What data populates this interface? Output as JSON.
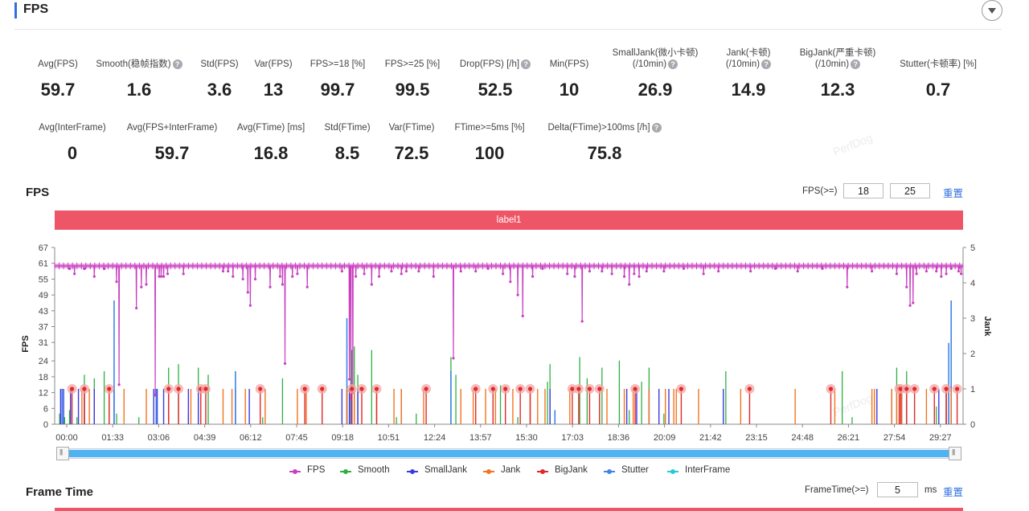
{
  "header": {
    "title": "FPS"
  },
  "metrics_row1": [
    {
      "label": "Avg(FPS)",
      "value": "59.7",
      "help": false
    },
    {
      "label": "Smooth(稳帧指数)",
      "value": "1.6",
      "help": true
    },
    {
      "label": "Std(FPS)",
      "value": "3.6",
      "help": false
    },
    {
      "label": "Var(FPS)",
      "value": "13",
      "help": false
    },
    {
      "label": "FPS>=18 [%]",
      "value": "99.7",
      "help": false
    },
    {
      "label": "FPS>=25 [%]",
      "value": "99.5",
      "help": false
    },
    {
      "label": "Drop(FPS) [/h]",
      "value": "52.5",
      "help": true
    },
    {
      "label": "Min(FPS)",
      "value": "10",
      "help": false
    },
    {
      "label": "SmallJank(微小卡顿)",
      "label2": "(/10min)",
      "value": "26.9",
      "help": true
    },
    {
      "label": "Jank(卡顿)",
      "label2": "(/10min)",
      "value": "14.9",
      "help": true
    },
    {
      "label": "BigJank(严重卡顿)",
      "label2": "(/10min)",
      "value": "12.3",
      "help": true
    },
    {
      "label": "Stutter(卡顿率) [%]",
      "value": "0.7",
      "help": false
    }
  ],
  "metrics_row2": [
    {
      "label": "Avg(InterFrame)",
      "value": "0",
      "help": false
    },
    {
      "label": "Avg(FPS+InterFrame)",
      "value": "59.7",
      "help": false
    },
    {
      "label": "Avg(FTime) [ms]",
      "value": "16.8",
      "help": false
    },
    {
      "label": "Std(FTime)",
      "value": "8.5",
      "help": false
    },
    {
      "label": "Var(FTime)",
      "value": "72.5",
      "help": false
    },
    {
      "label": "FTime>=5ms [%]",
      "value": "100",
      "help": false
    },
    {
      "label": "Delta(FTime)>100ms [/h]",
      "value": "75.8",
      "help": true
    }
  ],
  "help_icon": "?",
  "fps_section": {
    "title": "FPS",
    "threshold_label": "FPS(>=)",
    "threshold1": "18",
    "threshold2": "25",
    "reset_label": "重置",
    "label_bar": "label1"
  },
  "watermark": "PerfDog",
  "chart_data": {
    "type": "line",
    "xlabel": "",
    "ylabel": "FPS",
    "y2label": "Jank",
    "ylim": [
      0,
      67
    ],
    "y2lim": [
      0,
      5
    ],
    "y_ticks": [
      0,
      6,
      12,
      18,
      24,
      31,
      37,
      43,
      49,
      55,
      61,
      67
    ],
    "y2_ticks": [
      0,
      1,
      2,
      3,
      4,
      5
    ],
    "x_ticks": [
      "00:00",
      "01:33",
      "03:06",
      "04:39",
      "06:12",
      "07:45",
      "09:18",
      "10:51",
      "12:24",
      "13:57",
      "15:30",
      "17:03",
      "18:36",
      "20:09",
      "21:42",
      "23:15",
      "24:48",
      "26:21",
      "27:54",
      "29:27"
    ],
    "duration_s": 1834,
    "fps_baseline": 60,
    "fps_drops": [
      [
        40,
        57
      ],
      [
        80,
        56
      ],
      [
        125,
        54
      ],
      [
        130,
        15
      ],
      [
        165,
        44
      ],
      [
        175,
        52
      ],
      [
        185,
        53
      ],
      [
        203,
        11
      ],
      [
        211,
        56
      ],
      [
        215,
        56
      ],
      [
        220,
        56
      ],
      [
        228,
        57
      ],
      [
        260,
        57
      ],
      [
        340,
        58
      ],
      [
        350,
        58
      ],
      [
        360,
        56
      ],
      [
        380,
        55
      ],
      [
        390,
        50
      ],
      [
        395,
        45
      ],
      [
        405,
        55
      ],
      [
        435,
        52
      ],
      [
        455,
        56
      ],
      [
        460,
        53
      ],
      [
        465,
        23
      ],
      [
        480,
        56
      ],
      [
        490,
        57
      ],
      [
        510,
        52
      ],
      [
        580,
        58
      ],
      [
        595,
        17
      ],
      [
        598,
        10
      ],
      [
        602,
        12
      ],
      [
        608,
        56
      ],
      [
        625,
        57
      ],
      [
        640,
        53
      ],
      [
        655,
        56
      ],
      [
        680,
        58
      ],
      [
        700,
        57
      ],
      [
        710,
        58
      ],
      [
        735,
        58
      ],
      [
        765,
        56
      ],
      [
        805,
        25
      ],
      [
        820,
        58
      ],
      [
        850,
        58
      ],
      [
        875,
        59
      ],
      [
        905,
        57
      ],
      [
        920,
        54
      ],
      [
        935,
        49
      ],
      [
        945,
        41
      ],
      [
        965,
        56
      ],
      [
        985,
        59
      ],
      [
        1035,
        57
      ],
      [
        1050,
        56
      ],
      [
        1065,
        39
      ],
      [
        1080,
        58
      ],
      [
        1105,
        58
      ],
      [
        1125,
        57
      ],
      [
        1150,
        56
      ],
      [
        1160,
        53
      ],
      [
        1170,
        57
      ],
      [
        1180,
        56
      ],
      [
        1195,
        58
      ],
      [
        1230,
        58
      ],
      [
        1270,
        59
      ],
      [
        1310,
        57
      ],
      [
        1340,
        58
      ],
      [
        1405,
        58
      ],
      [
        1455,
        59
      ],
      [
        1500,
        58
      ],
      [
        1550,
        59
      ],
      [
        1600,
        52
      ],
      [
        1650,
        58
      ],
      [
        1700,
        57
      ],
      [
        1720,
        52
      ],
      [
        1727,
        45
      ],
      [
        1733,
        46
      ],
      [
        1740,
        57
      ],
      [
        1760,
        58
      ],
      [
        1780,
        58
      ],
      [
        1790,
        56
      ],
      [
        1800,
        57
      ],
      [
        1810,
        59
      ],
      [
        1825,
        58
      ],
      [
        1830,
        57
      ]
    ],
    "smallJank": [
      [
        12,
        1
      ],
      [
        18,
        1
      ],
      [
        32,
        1
      ],
      [
        48,
        1
      ],
      [
        60,
        1
      ],
      [
        80,
        1
      ],
      [
        120,
        1
      ],
      [
        200,
        1
      ],
      [
        207,
        1
      ],
      [
        220,
        1
      ],
      [
        230,
        1
      ],
      [
        270,
        1
      ],
      [
        290,
        1
      ],
      [
        365,
        1
      ],
      [
        393,
        1
      ],
      [
        580,
        1
      ],
      [
        590,
        1
      ],
      [
        595,
        1
      ],
      [
        598,
        1
      ],
      [
        600,
        1
      ],
      [
        612,
        1
      ],
      [
        700,
        1
      ],
      [
        1000,
        1
      ],
      [
        1155,
        1
      ],
      [
        1175,
        1
      ],
      [
        1200,
        1
      ],
      [
        1220,
        1
      ],
      [
        1240,
        1
      ],
      [
        1350,
        1
      ],
      [
        1660,
        1
      ],
      [
        1690,
        1
      ],
      [
        1710,
        1
      ],
      [
        1785,
        1
      ],
      [
        1800,
        1
      ],
      [
        1805,
        1
      ]
    ],
    "jank": [
      [
        55,
        1
      ],
      [
        70,
        1
      ],
      [
        110,
        1
      ],
      [
        140,
        1
      ],
      [
        185,
        1
      ],
      [
        230,
        1
      ],
      [
        275,
        1
      ],
      [
        340,
        1
      ],
      [
        358,
        1
      ],
      [
        385,
        1
      ],
      [
        425,
        1
      ],
      [
        490,
        1
      ],
      [
        508,
        1
      ],
      [
        590,
        1
      ],
      [
        605,
        1
      ],
      [
        650,
        1
      ],
      [
        685,
        1
      ],
      [
        700,
        1
      ],
      [
        745,
        1
      ],
      [
        820,
        1
      ],
      [
        845,
        1
      ],
      [
        870,
        1
      ],
      [
        890,
        1
      ],
      [
        925,
        1
      ],
      [
        960,
        1
      ],
      [
        975,
        1
      ],
      [
        990,
        1
      ],
      [
        1040,
        1
      ],
      [
        1115,
        1
      ],
      [
        1150,
        1
      ],
      [
        1168,
        1
      ],
      [
        1200,
        1
      ],
      [
        1233,
        1
      ],
      [
        1250,
        1
      ],
      [
        1255,
        1
      ],
      [
        1300,
        1
      ],
      [
        1385,
        1
      ],
      [
        1495,
        1
      ],
      [
        1575,
        1
      ],
      [
        1650,
        1
      ],
      [
        1655,
        1
      ],
      [
        1690,
        1
      ],
      [
        1700,
        1
      ],
      [
        1710,
        1
      ],
      [
        1760,
        1
      ],
      [
        1800,
        1
      ],
      [
        1810,
        1
      ]
    ],
    "bigJank": [
      [
        35,
        1
      ],
      [
        60,
        1
      ],
      [
        110,
        1
      ],
      [
        230,
        1
      ],
      [
        250,
        1
      ],
      [
        295,
        1
      ],
      [
        305,
        1
      ],
      [
        415,
        1
      ],
      [
        505,
        1
      ],
      [
        540,
        1
      ],
      [
        600,
        1
      ],
      [
        620,
        1
      ],
      [
        650,
        1
      ],
      [
        750,
        1
      ],
      [
        850,
        1
      ],
      [
        885,
        1
      ],
      [
        910,
        1
      ],
      [
        940,
        1
      ],
      [
        960,
        1
      ],
      [
        1045,
        1
      ],
      [
        1058,
        1
      ],
      [
        1080,
        1
      ],
      [
        1100,
        1
      ],
      [
        1172,
        1
      ],
      [
        1265,
        1
      ],
      [
        1403,
        1
      ],
      [
        1567,
        1
      ],
      [
        1705,
        1
      ],
      [
        1708,
        1
      ],
      [
        1720,
        1
      ],
      [
        1736,
        1
      ],
      [
        1776,
        1
      ],
      [
        1800,
        1
      ],
      [
        1822,
        1
      ]
    ],
    "smooth": [
      [
        10,
        0.3
      ],
      [
        20,
        0.2
      ],
      [
        30,
        0.4
      ],
      [
        45,
        0.2
      ],
      [
        60,
        1.4
      ],
      [
        80,
        1.3
      ],
      [
        100,
        1.5
      ],
      [
        125,
        0.3
      ],
      [
        170,
        0.2
      ],
      [
        230,
        1.6
      ],
      [
        250,
        1.7
      ],
      [
        270,
        0.3
      ],
      [
        290,
        1.6
      ],
      [
        310,
        1.4
      ],
      [
        420,
        0.2
      ],
      [
        460,
        1.3
      ],
      [
        600,
        2.1
      ],
      [
        605,
        2.2
      ],
      [
        612,
        1.4
      ],
      [
        640,
        2.1
      ],
      [
        690,
        0.2
      ],
      [
        730,
        0.3
      ],
      [
        800,
        1.9
      ],
      [
        810,
        1.4
      ],
      [
        900,
        1.1
      ],
      [
        935,
        0.2
      ],
      [
        995,
        1.2
      ],
      [
        1000,
        1.7
      ],
      [
        1010,
        0.3
      ],
      [
        1060,
        1.9
      ],
      [
        1075,
        1.3
      ],
      [
        1105,
        1.6
      ],
      [
        1140,
        1.8
      ],
      [
        1160,
        0.4
      ],
      [
        1185,
        1.2
      ],
      [
        1200,
        1.6
      ],
      [
        1230,
        0.3
      ],
      [
        1355,
        1.5
      ],
      [
        1590,
        1.5
      ],
      [
        1610,
        0.2
      ],
      [
        1700,
        1.6
      ],
      [
        1720,
        1.5
      ],
      [
        1780,
        0.5
      ],
      [
        1800,
        0.4
      ],
      [
        1805,
        0.3
      ]
    ],
    "stutter": [
      [
        15,
        1
      ],
      [
        120,
        3.5
      ],
      [
        205,
        1
      ],
      [
        365,
        1.5
      ],
      [
        590,
        3
      ],
      [
        598,
        1.2
      ],
      [
        800,
        1.5
      ],
      [
        1010,
        0.4
      ],
      [
        1720,
        0.7
      ],
      [
        1805,
        2.3
      ],
      [
        1810,
        3.5
      ]
    ],
    "interFrame": [],
    "legend": [
      "FPS",
      "Smooth",
      "SmallJank",
      "Jank",
      "BigJank",
      "Stutter",
      "InterFrame"
    ],
    "legend_placement": "bottom",
    "colors": {
      "fps": "#c840c0",
      "smooth": "#2eb040",
      "smallJank": "#3a3adf",
      "jank": "#f27420",
      "bigJank": "#e02828",
      "stutter": "#3d85e8",
      "interFrame": "#27c9d8"
    },
    "grid": false
  },
  "frame_time_section": {
    "title": "Frame Time",
    "threshold_label": "FrameTime(>=)",
    "threshold": "5",
    "unit": "ms",
    "reset_label": "重置"
  }
}
